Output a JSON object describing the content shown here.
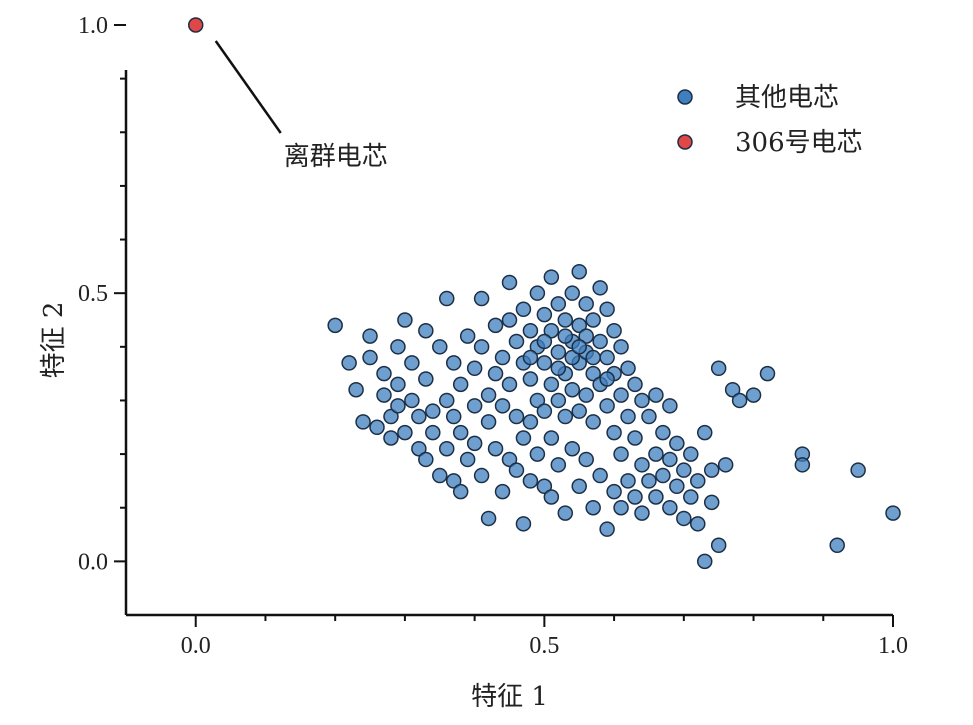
{
  "chart_data": {
    "type": "scatter",
    "xlabel": "特征 1",
    "ylabel": "特征 2",
    "xlim": [
      -0.1,
      1.0
    ],
    "ylim": [
      -0.1,
      1.0
    ],
    "xticks": [
      "0.0",
      "0.5",
      "1.0"
    ],
    "yticks": [
      "0.0",
      "0.5",
      "1.0"
    ],
    "grid": false,
    "legend_position": "top-right",
    "series": [
      {
        "name": "其他电芯",
        "color": "#3f7fbf",
        "points": [
          [
            0.2,
            0.44
          ],
          [
            0.22,
            0.37
          ],
          [
            0.23,
            0.32
          ],
          [
            0.24,
            0.26
          ],
          [
            0.25,
            0.42
          ],
          [
            0.25,
            0.38
          ],
          [
            0.26,
            0.25
          ],
          [
            0.27,
            0.35
          ],
          [
            0.27,
            0.31
          ],
          [
            0.28,
            0.27
          ],
          [
            0.28,
            0.23
          ],
          [
            0.29,
            0.4
          ],
          [
            0.29,
            0.33
          ],
          [
            0.29,
            0.29
          ],
          [
            0.3,
            0.45
          ],
          [
            0.3,
            0.24
          ],
          [
            0.31,
            0.37
          ],
          [
            0.31,
            0.3
          ],
          [
            0.32,
            0.27
          ],
          [
            0.32,
            0.21
          ],
          [
            0.33,
            0.43
          ],
          [
            0.33,
            0.34
          ],
          [
            0.33,
            0.19
          ],
          [
            0.34,
            0.28
          ],
          [
            0.34,
            0.24
          ],
          [
            0.35,
            0.4
          ],
          [
            0.35,
            0.16
          ],
          [
            0.36,
            0.49
          ],
          [
            0.36,
            0.3
          ],
          [
            0.36,
            0.21
          ],
          [
            0.37,
            0.37
          ],
          [
            0.37,
            0.27
          ],
          [
            0.37,
            0.15
          ],
          [
            0.38,
            0.33
          ],
          [
            0.38,
            0.24
          ],
          [
            0.38,
            0.13
          ],
          [
            0.39,
            0.42
          ],
          [
            0.39,
            0.19
          ],
          [
            0.4,
            0.36
          ],
          [
            0.4,
            0.29
          ],
          [
            0.4,
            0.22
          ],
          [
            0.41,
            0.49
          ],
          [
            0.41,
            0.4
          ],
          [
            0.41,
            0.16
          ],
          [
            0.42,
            0.31
          ],
          [
            0.42,
            0.26
          ],
          [
            0.42,
            0.08
          ],
          [
            0.43,
            0.44
          ],
          [
            0.43,
            0.35
          ],
          [
            0.43,
            0.21
          ],
          [
            0.44,
            0.38
          ],
          [
            0.44,
            0.29
          ],
          [
            0.44,
            0.13
          ],
          [
            0.45,
            0.52
          ],
          [
            0.45,
            0.45
          ],
          [
            0.45,
            0.33
          ],
          [
            0.45,
            0.19
          ],
          [
            0.46,
            0.41
          ],
          [
            0.46,
            0.27
          ],
          [
            0.46,
            0.17
          ],
          [
            0.47,
            0.47
          ],
          [
            0.47,
            0.37
          ],
          [
            0.47,
            0.23
          ],
          [
            0.47,
            0.07
          ],
          [
            0.48,
            0.43
          ],
          [
            0.48,
            0.34
          ],
          [
            0.48,
            0.26
          ],
          [
            0.48,
            0.15
          ],
          [
            0.49,
            0.5
          ],
          [
            0.49,
            0.4
          ],
          [
            0.49,
            0.3
          ],
          [
            0.49,
            0.2
          ],
          [
            0.5,
            0.46
          ],
          [
            0.5,
            0.37
          ],
          [
            0.5,
            0.28
          ],
          [
            0.5,
            0.14
          ],
          [
            0.51,
            0.53
          ],
          [
            0.51,
            0.43
          ],
          [
            0.51,
            0.33
          ],
          [
            0.51,
            0.23
          ],
          [
            0.51,
            0.12
          ],
          [
            0.52,
            0.48
          ],
          [
            0.52,
            0.39
          ],
          [
            0.52,
            0.3
          ],
          [
            0.52,
            0.18
          ],
          [
            0.53,
            0.45
          ],
          [
            0.53,
            0.35
          ],
          [
            0.53,
            0.27
          ],
          [
            0.53,
            0.09
          ],
          [
            0.54,
            0.5
          ],
          [
            0.54,
            0.41
          ],
          [
            0.54,
            0.32
          ],
          [
            0.54,
            0.21
          ],
          [
            0.55,
            0.54
          ],
          [
            0.55,
            0.44
          ],
          [
            0.55,
            0.37
          ],
          [
            0.55,
            0.28
          ],
          [
            0.55,
            0.14
          ],
          [
            0.56,
            0.48
          ],
          [
            0.56,
            0.39
          ],
          [
            0.56,
            0.31
          ],
          [
            0.56,
            0.19
          ],
          [
            0.57,
            0.45
          ],
          [
            0.57,
            0.35
          ],
          [
            0.57,
            0.26
          ],
          [
            0.57,
            0.1
          ],
          [
            0.58,
            0.51
          ],
          [
            0.58,
            0.41
          ],
          [
            0.58,
            0.33
          ],
          [
            0.58,
            0.16
          ],
          [
            0.59,
            0.47
          ],
          [
            0.59,
            0.38
          ],
          [
            0.59,
            0.29
          ],
          [
            0.59,
            0.06
          ],
          [
            0.6,
            0.43
          ],
          [
            0.6,
            0.35
          ],
          [
            0.6,
            0.24
          ],
          [
            0.6,
            0.13
          ],
          [
            0.61,
            0.4
          ],
          [
            0.61,
            0.31
          ],
          [
            0.61,
            0.2
          ],
          [
            0.61,
            0.1
          ],
          [
            0.62,
            0.36
          ],
          [
            0.62,
            0.27
          ],
          [
            0.62,
            0.15
          ],
          [
            0.63,
            0.33
          ],
          [
            0.63,
            0.23
          ],
          [
            0.63,
            0.12
          ],
          [
            0.64,
            0.3
          ],
          [
            0.64,
            0.18
          ],
          [
            0.64,
            0.09
          ],
          [
            0.65,
            0.27
          ],
          [
            0.65,
            0.15
          ],
          [
            0.66,
            0.31
          ],
          [
            0.66,
            0.2
          ],
          [
            0.66,
            0.12
          ],
          [
            0.67,
            0.24
          ],
          [
            0.67,
            0.16
          ],
          [
            0.68,
            0.29
          ],
          [
            0.68,
            0.19
          ],
          [
            0.68,
            0.1
          ],
          [
            0.69,
            0.22
          ],
          [
            0.69,
            0.14
          ],
          [
            0.7,
            0.17
          ],
          [
            0.7,
            0.08
          ],
          [
            0.71,
            0.2
          ],
          [
            0.71,
            0.12
          ],
          [
            0.72,
            0.15
          ],
          [
            0.72,
            0.07
          ],
          [
            0.73,
            0.0
          ],
          [
            0.73,
            0.24
          ],
          [
            0.74,
            0.17
          ],
          [
            0.74,
            0.11
          ],
          [
            0.75,
            0.36
          ],
          [
            0.75,
            0.03
          ],
          [
            0.76,
            0.18
          ],
          [
            0.77,
            0.32
          ],
          [
            0.78,
            0.3
          ],
          [
            0.8,
            0.31
          ],
          [
            0.82,
            0.35
          ],
          [
            0.87,
            0.2
          ],
          [
            0.87,
            0.18
          ],
          [
            0.92,
            0.03
          ],
          [
            0.95,
            0.17
          ],
          [
            1.0,
            0.09
          ],
          [
            0.53,
            0.42
          ],
          [
            0.54,
            0.38
          ],
          [
            0.56,
            0.42
          ],
          [
            0.52,
            0.36
          ],
          [
            0.57,
            0.38
          ],
          [
            0.55,
            0.4
          ],
          [
            0.5,
            0.41
          ],
          [
            0.59,
            0.34
          ],
          [
            0.48,
            0.38
          ]
        ]
      },
      {
        "name": "306号电芯",
        "color": "#e04848",
        "points": [
          [
            0.0,
            1.0
          ]
        ]
      }
    ],
    "annotations": [
      {
        "text": "离群电芯",
        "point": [
          0.0,
          1.0
        ]
      }
    ]
  }
}
